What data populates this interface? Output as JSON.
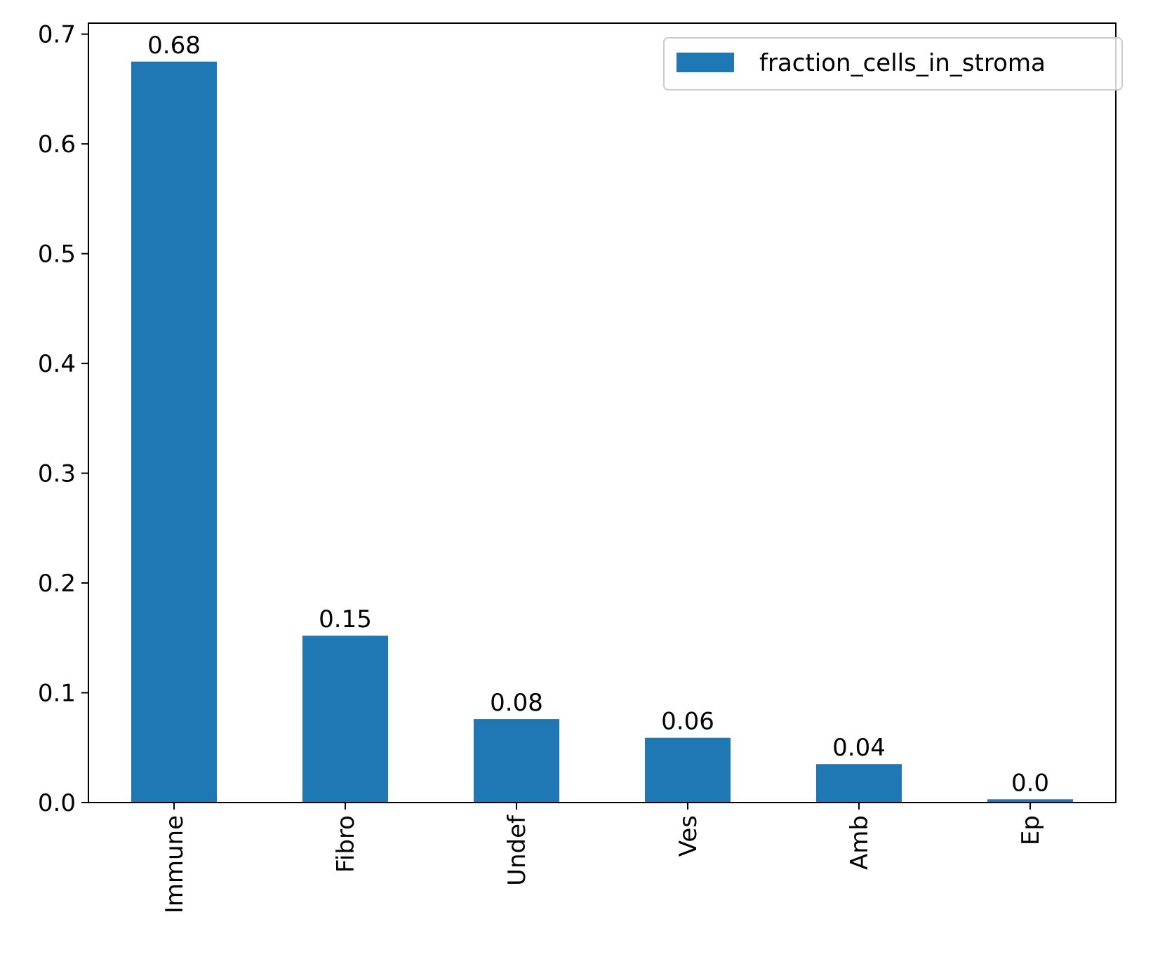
{
  "chart_data": {
    "type": "bar",
    "title": "",
    "xlabel": "",
    "ylabel": "",
    "categories": [
      "Immune",
      "Fibro",
      "Undef",
      "Ves",
      "Amb",
      "Ep"
    ],
    "series": [
      {
        "name": "fraction_cells_in_stroma",
        "values": [
          0.675,
          0.152,
          0.076,
          0.059,
          0.035,
          0.003
        ],
        "labels": [
          "0.68",
          "0.15",
          "0.08",
          "0.06",
          "0.04",
          "0.0"
        ],
        "color": "#1f77b4"
      }
    ],
    "ylim": [
      0,
      0.71
    ],
    "yticks": [
      0.0,
      0.1,
      0.2,
      0.3,
      0.4,
      0.5,
      0.6,
      0.7
    ],
    "ytick_labels": [
      "0.0",
      "0.1",
      "0.2",
      "0.3",
      "0.4",
      "0.5",
      "0.6",
      "0.7"
    ],
    "grid": false,
    "legend_position": "top-right",
    "xtick_rotation": "vertical"
  }
}
